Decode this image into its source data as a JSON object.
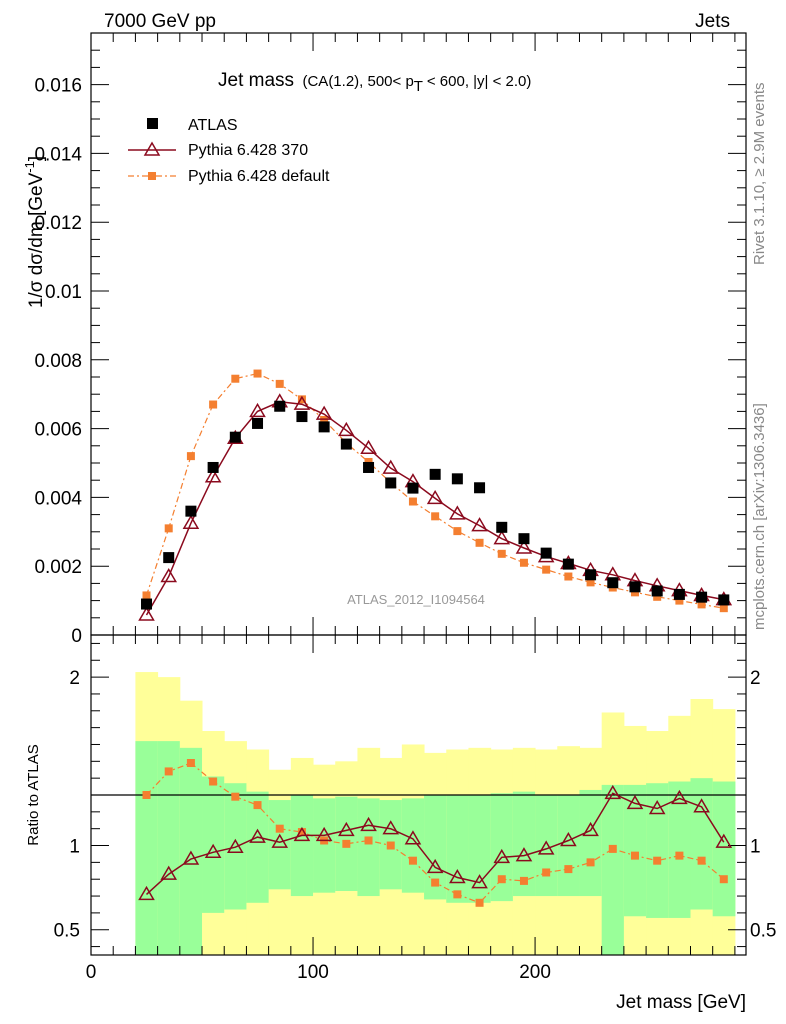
{
  "header": {
    "left": "7000 GeV pp",
    "right": "Jets"
  },
  "plot": {
    "title_main": "Jet mass",
    "title_sub": "(CA(1.2), 500< p",
    "title_sub_T": "T",
    "title_sub_end": " < 600, |y| < 2.0)",
    "ylabel": "1/σ dσ/dm [GeV",
    "ylabel_sup": "-1",
    "ylabel_end": "]",
    "analysis": "ATLAS_2012_I1094564",
    "rivet": "Rivet 3.1.10, ≥ 2.9M events",
    "mcplots": "mcplots.cern.ch [arXiv:1306.3436]"
  },
  "ratio_plot": {
    "ylabel": "Ratio to ATLAS",
    "xlabel": "Jet mass [GeV]"
  },
  "legend": [
    {
      "name": "ATLAS"
    },
    {
      "name": "Pythia 6.428 370"
    },
    {
      "name": "Pythia 6.428 default"
    }
  ],
  "colors": {
    "data": "#000000",
    "p370": "#8b0a1e",
    "pdef": "#f47f30",
    "band_inner": "#99ff99",
    "band_outer": "#ffff99"
  },
  "chart_data": {
    "type": "line",
    "title": "Jet mass (CA(1.2), 500< pT < 600, |y| < 2.0)",
    "xlabel": "Jet mass [GeV]",
    "ylabel": "1/σ dσ/dm [GeV^-1]",
    "xlim": [
      0,
      295
    ],
    "ylim": [
      0,
      0.0175
    ],
    "x_ticks": [
      0,
      100,
      200
    ],
    "y_ticks": [
      0,
      0.002,
      0.004,
      0.006,
      0.008,
      0.01,
      0.012,
      0.014,
      0.016
    ],
    "y_tick_labels": [
      "0",
      "0.002",
      "0.004",
      "0.006",
      "0.008",
      "0.01",
      "0.012",
      "0.014",
      "0.016"
    ],
    "x": [
      25,
      35,
      45,
      55,
      65,
      75,
      85,
      95,
      105,
      115,
      125,
      135,
      145,
      155,
      165,
      175,
      185,
      195,
      205,
      215,
      225,
      235,
      245,
      255,
      265,
      275,
      285
    ],
    "series": [
      {
        "name": "ATLAS",
        "values": [
          0.0009,
          0.00225,
          0.0036,
          0.00487,
          0.00575,
          0.00615,
          0.00665,
          0.00635,
          0.00605,
          0.00555,
          0.00487,
          0.00442,
          0.00427,
          0.00467,
          0.00454,
          0.00428,
          0.00313,
          0.0028,
          0.00238,
          0.00206,
          0.00175,
          0.00152,
          0.0014,
          0.00128,
          0.00118,
          0.0011,
          0.00102
        ]
      },
      {
        "name": "Pythia 6.428 370",
        "values": [
          0.00058,
          0.0017,
          0.00325,
          0.0046,
          0.00572,
          0.0065,
          0.00678,
          0.00671,
          0.00642,
          0.00595,
          0.00543,
          0.00485,
          0.00446,
          0.00397,
          0.00352,
          0.00318,
          0.0028,
          0.00253,
          0.00228,
          0.00208,
          0.00188,
          0.00175,
          0.00158,
          0.00143,
          0.00129,
          0.00115,
          0.00103
        ]
      },
      {
        "name": "Pythia 6.428 default",
        "values": [
          0.00115,
          0.0031,
          0.0052,
          0.0067,
          0.00745,
          0.0076,
          0.0073,
          0.00685,
          0.00625,
          0.00558,
          0.00503,
          0.00443,
          0.00388,
          0.00345,
          0.00302,
          0.00268,
          0.00236,
          0.0021,
          0.0019,
          0.0017,
          0.00153,
          0.00138,
          0.00124,
          0.00111,
          0.001,
          0.00089,
          0.00078
        ]
      }
    ],
    "ratio": {
      "ylabel": "Ratio to ATLAS",
      "ylim": [
        0.35,
        2.25
      ],
      "y_ticks": [
        0.5,
        1,
        2
      ],
      "y_tick_labels": [
        "0.5",
        "1",
        "2"
      ],
      "bin_edges": [
        20,
        30,
        40,
        50,
        60,
        70,
        80,
        90,
        100,
        110,
        120,
        130,
        140,
        150,
        160,
        170,
        180,
        190,
        200,
        210,
        220,
        230,
        240,
        250,
        260,
        270,
        280,
        290
      ],
      "band_inner_low": [
        0.35,
        0.35,
        0.35,
        0.6,
        0.62,
        0.66,
        0.74,
        0.7,
        0.72,
        0.73,
        0.7,
        0.74,
        0.72,
        0.68,
        0.66,
        0.66,
        0.67,
        0.7,
        0.7,
        0.7,
        0.7,
        0.35,
        0.58,
        0.57,
        0.57,
        0.62,
        0.58
      ],
      "band_inner_high": [
        1.62,
        1.62,
        1.58,
        1.41,
        1.37,
        1.32,
        1.27,
        1.3,
        1.28,
        1.29,
        1.28,
        1.27,
        1.28,
        1.3,
        1.3,
        1.3,
        1.31,
        1.32,
        1.3,
        1.3,
        1.33,
        1.36,
        1.36,
        1.37,
        1.38,
        1.4,
        1.38
      ],
      "band_outer_low": [
        0.35,
        0.35,
        0.35,
        0.35,
        0.35,
        0.35,
        0.35,
        0.35,
        0.35,
        0.35,
        0.35,
        0.35,
        0.35,
        0.35,
        0.35,
        0.35,
        0.35,
        0.35,
        0.35,
        0.35,
        0.35,
        0.35,
        0.35,
        0.35,
        0.35,
        0.35,
        0.35
      ],
      "band_outer_high": [
        2.03,
        2.0,
        1.86,
        1.68,
        1.62,
        1.57,
        1.45,
        1.52,
        1.48,
        1.5,
        1.58,
        1.52,
        1.6,
        1.55,
        1.57,
        1.58,
        1.57,
        1.58,
        1.57,
        1.59,
        1.58,
        1.79,
        1.71,
        1.68,
        1.77,
        1.87,
        1.81
      ],
      "p370": [
        0.71,
        0.83,
        0.92,
        0.96,
        0.99,
        1.05,
        1.02,
        1.06,
        1.06,
        1.09,
        1.12,
        1.1,
        1.04,
        0.87,
        0.81,
        0.78,
        0.93,
        0.94,
        0.98,
        1.03,
        1.09,
        1.31,
        1.25,
        1.22,
        1.28,
        1.23,
        1.02
      ],
      "pdef": [
        1.3,
        1.44,
        1.49,
        1.38,
        1.29,
        1.24,
        1.1,
        1.08,
        1.03,
        1.01,
        1.03,
        1.0,
        0.91,
        0.78,
        0.71,
        0.66,
        0.8,
        0.79,
        0.84,
        0.86,
        0.9,
        0.98,
        0.94,
        0.91,
        0.94,
        0.91,
        0.8
      ]
    }
  }
}
